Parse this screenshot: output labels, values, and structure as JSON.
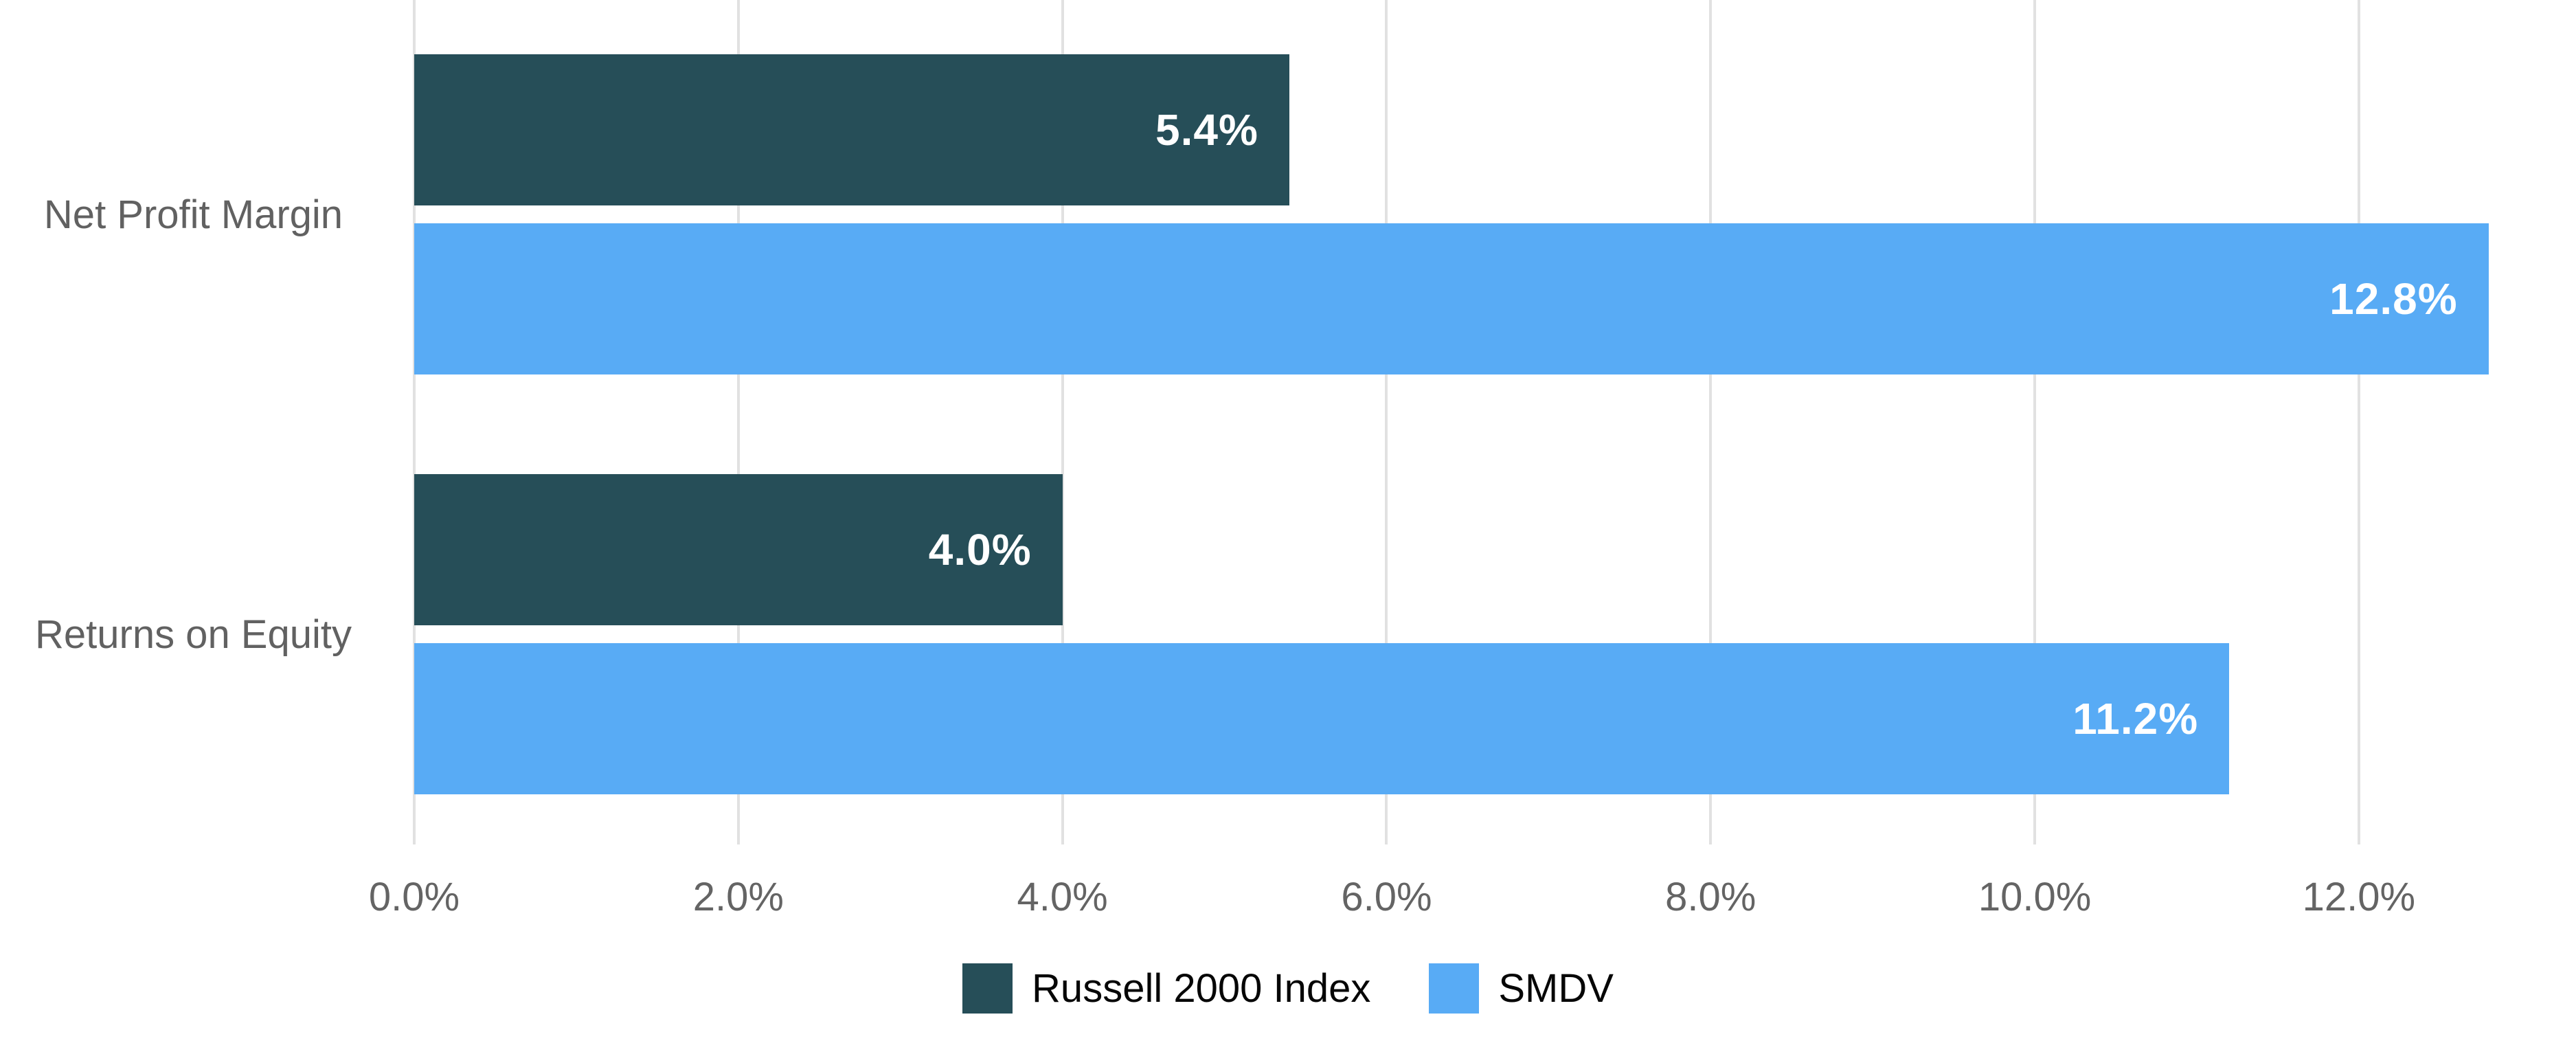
{
  "chart_data": {
    "type": "bar",
    "orientation": "horizontal",
    "title": "",
    "xlabel": "",
    "ylabel": "",
    "grid": true,
    "legend_position": "bottom",
    "categories": [
      "Net Profit Margin",
      "Returns on Equity"
    ],
    "series": [
      {
        "name": "Russell 2000 Index",
        "color": "#264e58",
        "values": [
          5.4,
          4.0
        ],
        "labels": [
          "5.4%",
          "4.0%"
        ]
      },
      {
        "name": "SMDV",
        "color": "#58abf5",
        "values": [
          12.8,
          11.2
        ],
        "labels": [
          "12.8%",
          "11.2%"
        ]
      }
    ],
    "xticks": {
      "values": [
        0,
        2,
        4,
        6,
        8,
        10,
        12
      ],
      "labels": [
        "0.0%",
        "2.0%",
        "4.0%",
        "6.0%",
        "8.0%",
        "10.0%",
        "12.0%"
      ]
    },
    "xlim": [
      0,
      13.34
    ]
  },
  "colors": {
    "background": "#ffffff",
    "gridline": "#e1e1e1",
    "axis_text": "#646464",
    "category_text": "#616161",
    "value_text": "#ffffff",
    "legend_text": "#060606"
  }
}
